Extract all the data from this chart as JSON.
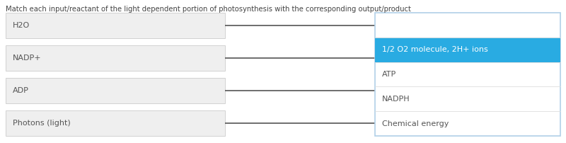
{
  "title": "Match each input/reactant of the light dependent portion of photosynthesis with the corresponding output/product",
  "title_fontsize": 7.2,
  "title_color": "#444444",
  "left_items": [
    "H2O",
    "NADP+",
    "ADP",
    "Photons (light)"
  ],
  "right_items_all": [
    "",
    "1/2 O2 molecule, 2H+ ions",
    "ATP",
    "NADPH",
    "Chemical energy"
  ],
  "highlight_index": 1,
  "highlight_color": "#29abe2",
  "highlight_text_color": "#ffffff",
  "normal_text_color": "#555555",
  "left_box_facecolor": "#efefef",
  "left_box_edgecolor": "#cccccc",
  "right_box_facecolor": "#ffffff",
  "right_box_edgecolor": "#b0cfe8",
  "right_divider_color": "#dddddd",
  "line_color": "#555555",
  "bg_color": "#ffffff",
  "item_fontsize": 8.0,
  "fig_width": 8.0,
  "fig_height": 2.02,
  "dpi": 100
}
